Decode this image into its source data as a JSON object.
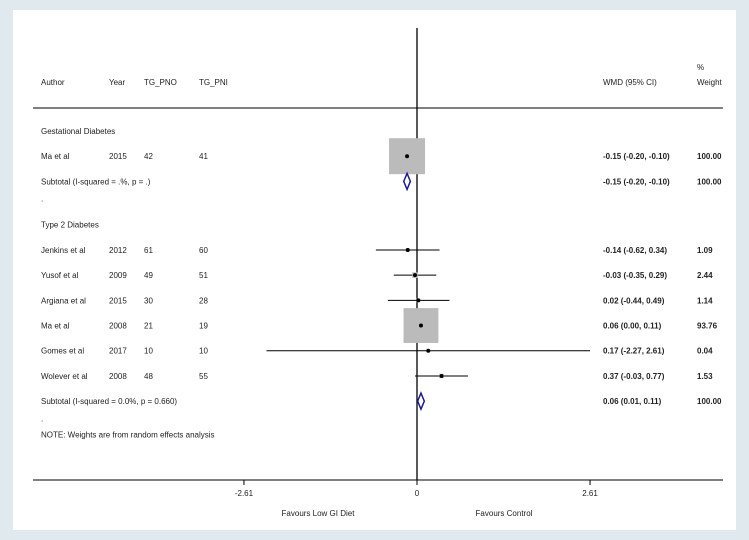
{
  "chart_data": {
    "type": "forest",
    "columns": {
      "author": "Author",
      "year": "Year",
      "tg_pno": "TG_PNO",
      "tg_pni": "TG_PNI",
      "effect": "WMD (95% CI)",
      "weight_line1": "%",
      "weight_line2": "Weight"
    },
    "groups": [
      {
        "label": "Gestational Diabetes",
        "studies": [
          {
            "author": "Ma et al",
            "year": "2015",
            "tg_pno": "42",
            "tg_pni": "41",
            "wmd": -0.15,
            "lo": -0.2,
            "hi": -0.1,
            "ci": "-0.15 (-0.20, -0.10)",
            "weight": "100.00",
            "weight_pct": 100.0
          }
        ],
        "subtotal": {
          "label": "Subtotal  (I-squared = .%, p = .)",
          "wmd": -0.15,
          "lo": -0.2,
          "hi": -0.1,
          "ci": "-0.15 (-0.20, -0.10)",
          "weight": "100.00"
        },
        "separator": "."
      },
      {
        "label": "Type 2 Diabetes",
        "studies": [
          {
            "author": "Jenkins et al",
            "year": "2012",
            "tg_pno": "61",
            "tg_pni": "60",
            "wmd": -0.14,
            "lo": -0.62,
            "hi": 0.34,
            "ci": "-0.14 (-0.62, 0.34)",
            "weight": "1.09",
            "weight_pct": 1.09
          },
          {
            "author": "Yusof et al",
            "year": "2009",
            "tg_pno": "49",
            "tg_pni": "51",
            "wmd": -0.03,
            "lo": -0.35,
            "hi": 0.29,
            "ci": "-0.03 (-0.35, 0.29)",
            "weight": "2.44",
            "weight_pct": 2.44
          },
          {
            "author": "Argiana et al",
            "year": "2015",
            "tg_pno": "30",
            "tg_pni": "28",
            "wmd": 0.02,
            "lo": -0.44,
            "hi": 0.49,
            "ci": "0.02 (-0.44, 0.49)",
            "weight": "1.14",
            "weight_pct": 1.14
          },
          {
            "author": "Ma et al",
            "year": "2008",
            "tg_pno": "21",
            "tg_pni": "19",
            "wmd": 0.06,
            "lo": 0.0,
            "hi": 0.11,
            "ci": "0.06 (0.00, 0.11)",
            "weight": "93.76",
            "weight_pct": 93.76
          },
          {
            "author": "Gomes et al",
            "year": "2017",
            "tg_pno": "10",
            "tg_pni": "10",
            "wmd": 0.17,
            "lo": -2.27,
            "hi": 2.61,
            "ci": "0.17 (-2.27, 2.61)",
            "weight": "0.04",
            "weight_pct": 0.04
          },
          {
            "author": "Wolever et al",
            "year": "2008",
            "tg_pno": "48",
            "tg_pni": "55",
            "wmd": 0.37,
            "lo": -0.03,
            "hi": 0.77,
            "ci": "0.37 (-0.03, 0.77)",
            "weight": "1.53",
            "weight_pct": 1.53
          }
        ],
        "subtotal": {
          "label": "Subtotal  (I-squared = 0.0%, p = 0.660)",
          "wmd": 0.06,
          "lo": 0.01,
          "hi": 0.11,
          "ci": "0.06 (0.01, 0.11)",
          "weight": "100.00"
        },
        "separator": "."
      }
    ],
    "note": "NOTE: Weights are from random effects analysis",
    "x_ticks": [
      {
        "value": -2.61,
        "label": "-2.61"
      },
      {
        "value": 0,
        "label": "0"
      },
      {
        "value": 2.61,
        "label": "2.61"
      }
    ],
    "xlim": [
      -2.61,
      2.61
    ],
    "favours_left": "Favours Low GI Diet",
    "favours_right": "Favours Control",
    "colors": {
      "box": "#bbbbbb",
      "diamond": "#1a1a8c",
      "line": "#000000"
    }
  }
}
